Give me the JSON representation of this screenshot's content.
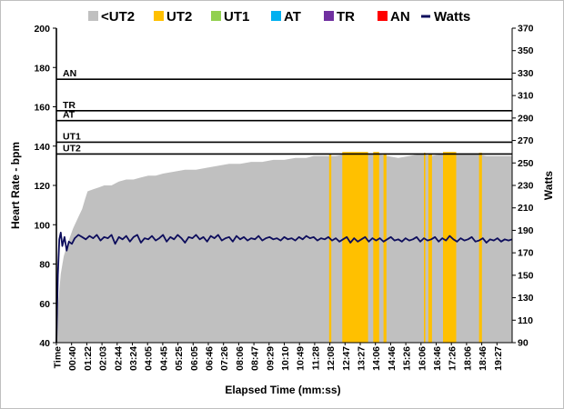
{
  "chart_data": {
    "type": "area",
    "xlabel": "Elapsed Time (mm:ss)",
    "ylabel": "Heart Rate - bpm",
    "y2label": "Watts",
    "ylim": [
      40,
      200
    ],
    "y2lim": [
      90,
      370
    ],
    "yticks": [
      40,
      60,
      80,
      100,
      120,
      140,
      160,
      180,
      200
    ],
    "y2ticks": [
      90,
      110,
      130,
      150,
      170,
      190,
      210,
      230,
      250,
      270,
      290,
      310,
      330,
      350,
      370
    ],
    "x_seconds_max": 1240,
    "x_tick_labels": [
      "Time",
      "00:40",
      "01:22",
      "02:03",
      "02:44",
      "03:24",
      "04:05",
      "04:45",
      "05:25",
      "06:05",
      "06:46",
      "07:26",
      "08:06",
      "08:47",
      "09:29",
      "10:10",
      "10:49",
      "11:28",
      "12:08",
      "12:47",
      "13:27",
      "14:06",
      "14:46",
      "15:26",
      "16:06",
      "16:46",
      "17:26",
      "18:06",
      "18:46",
      "19:27"
    ],
    "legend_position": "top",
    "grid": false,
    "legend": [
      {
        "name": "<UT2",
        "color": "#c0c0c0",
        "kind": "swatch"
      },
      {
        "name": "UT2",
        "color": "#ffc000",
        "kind": "swatch"
      },
      {
        "name": "UT1",
        "color": "#92d050",
        "kind": "swatch"
      },
      {
        "name": "AT",
        "color": "#00b0f0",
        "kind": "swatch"
      },
      {
        "name": "TR",
        "color": "#7030a0",
        "kind": "swatch"
      },
      {
        "name": "AN",
        "color": "#ff0000",
        "kind": "swatch"
      },
      {
        "name": "Watts",
        "color": "#0d0d5c",
        "kind": "line"
      }
    ],
    "zones": [
      {
        "name": "UT2",
        "lower_bpm": 136,
        "upper_bpm": 142
      },
      {
        "name": "UT1",
        "lower_bpm": 142,
        "upper_bpm": 153
      },
      {
        "name": "AT",
        "lower_bpm": 153,
        "upper_bpm": 158
      },
      {
        "name": "TR",
        "lower_bpm": 158,
        "upper_bpm": 174
      },
      {
        "name": "AN",
        "lower_bpm": 174,
        "upper_bpm": 200
      }
    ],
    "heart_rate_series": {
      "name": "Heart Rate",
      "points": [
        [
          0,
          40
        ],
        [
          5,
          60
        ],
        [
          12,
          75
        ],
        [
          20,
          84
        ],
        [
          30,
          90
        ],
        [
          45,
          98
        ],
        [
          60,
          104
        ],
        [
          70,
          108
        ],
        [
          78,
          113
        ],
        [
          85,
          117
        ],
        [
          100,
          118
        ],
        [
          115,
          119
        ],
        [
          130,
          120
        ],
        [
          150,
          120
        ],
        [
          170,
          122
        ],
        [
          190,
          123
        ],
        [
          210,
          123
        ],
        [
          230,
          124
        ],
        [
          250,
          125
        ],
        [
          270,
          125
        ],
        [
          290,
          126
        ],
        [
          320,
          127
        ],
        [
          350,
          128
        ],
        [
          380,
          128
        ],
        [
          410,
          129
        ],
        [
          440,
          130
        ],
        [
          470,
          131
        ],
        [
          500,
          131
        ],
        [
          530,
          132
        ],
        [
          560,
          132
        ],
        [
          590,
          133
        ],
        [
          620,
          133
        ],
        [
          650,
          134
        ],
        [
          680,
          134
        ],
        [
          700,
          135
        ],
        [
          730,
          135
        ],
        [
          760,
          135
        ],
        [
          790,
          136
        ],
        [
          810,
          136
        ],
        [
          840,
          136
        ],
        [
          870,
          136
        ],
        [
          900,
          135
        ],
        [
          930,
          134
        ],
        [
          960,
          135
        ],
        [
          990,
          136
        ],
        [
          1020,
          135
        ],
        [
          1050,
          136
        ],
        [
          1080,
          136
        ],
        [
          1110,
          136
        ],
        [
          1140,
          136
        ],
        [
          1170,
          135
        ],
        [
          1200,
          135
        ],
        [
          1240,
          135
        ]
      ]
    },
    "ut2_bands_seconds": [
      [
        742,
        748
      ],
      [
        778,
        848
      ],
      [
        862,
        878
      ],
      [
        890,
        898
      ],
      [
        1000,
        1004
      ],
      [
        1012,
        1022
      ],
      [
        1052,
        1088
      ],
      [
        1150,
        1158
      ]
    ],
    "watts_series": {
      "name": "Watts",
      "points": [
        [
          0,
          90
        ],
        [
          4,
          150
        ],
        [
          8,
          182
        ],
        [
          12,
          188
        ],
        [
          16,
          176
        ],
        [
          22,
          184
        ],
        [
          28,
          172
        ],
        [
          34,
          180
        ],
        [
          42,
          178
        ],
        [
          50,
          183
        ],
        [
          60,
          186
        ],
        [
          70,
          184
        ],
        [
          80,
          182
        ],
        [
          90,
          185
        ],
        [
          100,
          183
        ],
        [
          110,
          186
        ],
        [
          120,
          181
        ],
        [
          130,
          184
        ],
        [
          140,
          183
        ],
        [
          150,
          186
        ],
        [
          160,
          178
        ],
        [
          170,
          184
        ],
        [
          180,
          182
        ],
        [
          190,
          185
        ],
        [
          200,
          180
        ],
        [
          210,
          184
        ],
        [
          220,
          186
        ],
        [
          230,
          179
        ],
        [
          240,
          183
        ],
        [
          250,
          182
        ],
        [
          260,
          185
        ],
        [
          270,
          181
        ],
        [
          280,
          183
        ],
        [
          290,
          186
        ],
        [
          300,
          180
        ],
        [
          310,
          184
        ],
        [
          320,
          182
        ],
        [
          330,
          186
        ],
        [
          340,
          183
        ],
        [
          350,
          179
        ],
        [
          360,
          184
        ],
        [
          370,
          183
        ],
        [
          380,
          186
        ],
        [
          390,
          182
        ],
        [
          400,
          184
        ],
        [
          410,
          180
        ],
        [
          420,
          185
        ],
        [
          430,
          183
        ],
        [
          440,
          186
        ],
        [
          450,
          181
        ],
        [
          460,
          183
        ],
        [
          470,
          184
        ],
        [
          480,
          180
        ],
        [
          490,
          185
        ],
        [
          500,
          182
        ],
        [
          510,
          184
        ],
        [
          520,
          181
        ],
        [
          530,
          183
        ],
        [
          540,
          182
        ],
        [
          550,
          185
        ],
        [
          560,
          181
        ],
        [
          570,
          183
        ],
        [
          580,
          184
        ],
        [
          590,
          182
        ],
        [
          600,
          183
        ],
        [
          610,
          181
        ],
        [
          620,
          184
        ],
        [
          630,
          182
        ],
        [
          640,
          183
        ],
        [
          650,
          181
        ],
        [
          660,
          184
        ],
        [
          670,
          182
        ],
        [
          680,
          185
        ],
        [
          690,
          183
        ],
        [
          700,
          184
        ],
        [
          710,
          181
        ],
        [
          720,
          183
        ],
        [
          730,
          182
        ],
        [
          740,
          184
        ],
        [
          750,
          181
        ],
        [
          760,
          183
        ],
        [
          770,
          180
        ],
        [
          780,
          182
        ],
        [
          790,
          184
        ],
        [
          800,
          179
        ],
        [
          810,
          183
        ],
        [
          820,
          180
        ],
        [
          830,
          182
        ],
        [
          840,
          184
        ],
        [
          850,
          180
        ],
        [
          860,
          183
        ],
        [
          870,
          181
        ],
        [
          880,
          183
        ],
        [
          890,
          180
        ],
        [
          900,
          182
        ],
        [
          910,
          184
        ],
        [
          920,
          181
        ],
        [
          930,
          182
        ],
        [
          940,
          180
        ],
        [
          950,
          183
        ],
        [
          960,
          181
        ],
        [
          970,
          182
        ],
        [
          980,
          184
        ],
        [
          990,
          180
        ],
        [
          1000,
          183
        ],
        [
          1010,
          181
        ],
        [
          1020,
          182
        ],
        [
          1030,
          184
        ],
        [
          1040,
          180
        ],
        [
          1050,
          183
        ],
        [
          1060,
          181
        ],
        [
          1070,
          185
        ],
        [
          1080,
          182
        ],
        [
          1090,
          180
        ],
        [
          1100,
          183
        ],
        [
          1110,
          181
        ],
        [
          1120,
          182
        ],
        [
          1130,
          184
        ],
        [
          1140,
          180
        ],
        [
          1150,
          181
        ],
        [
          1160,
          183
        ],
        [
          1170,
          179
        ],
        [
          1180,
          182
        ],
        [
          1190,
          181
        ],
        [
          1200,
          183
        ],
        [
          1210,
          180
        ],
        [
          1220,
          182
        ],
        [
          1230,
          181
        ],
        [
          1240,
          182
        ]
      ]
    }
  }
}
